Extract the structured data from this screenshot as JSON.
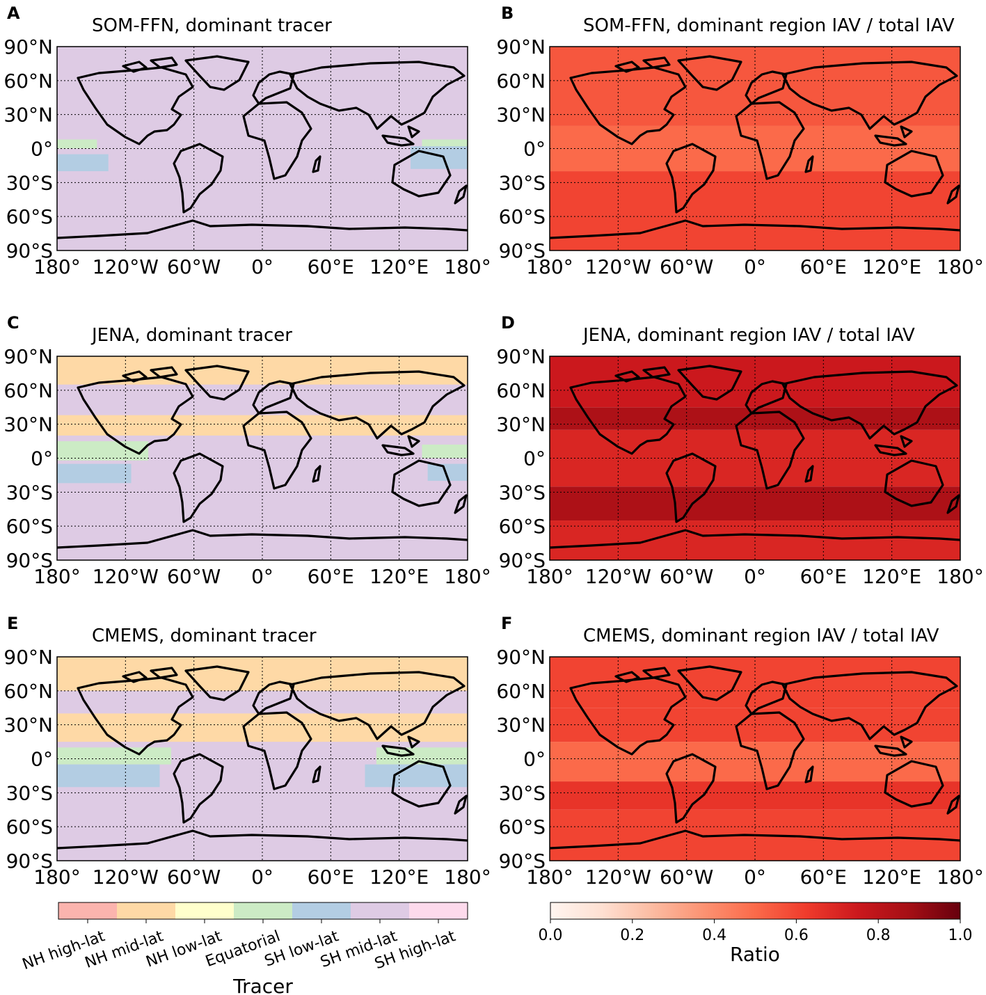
{
  "panels": [
    {
      "letter": "A",
      "title": "SOM-FFN, dominant tracer",
      "kind": "tracer"
    },
    {
      "letter": "B",
      "title": "SOM-FFN, dominant region IAV / total IAV",
      "kind": "ratio"
    },
    {
      "letter": "C",
      "title": "JENA, dominant tracer",
      "kind": "tracer"
    },
    {
      "letter": "D",
      "title": "JENA, dominant region IAV / total IAV",
      "kind": "ratio"
    },
    {
      "letter": "E",
      "title": "CMEMS, dominant tracer",
      "kind": "tracer"
    },
    {
      "letter": "F",
      "title": "CMEMS, dominant region IAV / total IAV",
      "kind": "ratio"
    }
  ],
  "lat_ticks": [
    "90°N",
    "60°N",
    "30°N",
    "0°",
    "30°S",
    "60°S",
    "90°S"
  ],
  "lon_ticks": [
    "180°",
    "120°W",
    "60°W",
    "0°",
    "60°E",
    "120°E",
    "180°"
  ],
  "tracer_colorbar": {
    "label": "Tracer",
    "categories": [
      "NH high-lat",
      "NH mid-lat",
      "NH low-lat",
      "Equatorial",
      "SH low-lat",
      "SH mid-lat",
      "SH high-lat"
    ],
    "colors": [
      "#fbb4ae",
      "#fed9a6",
      "#ffffcc",
      "#ccebc5",
      "#b3cde3",
      "#decbe4",
      "#fddaec"
    ]
  },
  "ratio_colorbar": {
    "label": "Ratio",
    "ticks": [
      "0.0",
      "0.2",
      "0.4",
      "0.6",
      "0.8",
      "1.0"
    ],
    "colormap": "Reds",
    "range": [
      0,
      1
    ]
  },
  "chart_data": [
    {
      "type": "heatmap",
      "panel": "A",
      "model": "SOM-FFN",
      "field": "dominant tracer",
      "xlim": [
        -180,
        180
      ],
      "ylim": [
        -90,
        90
      ],
      "regions": [
        {
          "tracer": "SH mid-lat",
          "extent": "global ocean background"
        },
        {
          "tracer": "Equatorial",
          "lon": [
            -180,
            -145
          ],
          "lat": [
            0,
            8
          ]
        },
        {
          "tracer": "SH low-lat",
          "lon": [
            -180,
            -135
          ],
          "lat": [
            -20,
            -5
          ]
        },
        {
          "tracer": "Equatorial",
          "lon": [
            140,
            180
          ],
          "lat": [
            0,
            8
          ]
        },
        {
          "tracer": "SH low-lat",
          "lon": [
            130,
            180
          ],
          "lat": [
            -18,
            2
          ]
        }
      ]
    },
    {
      "type": "heatmap",
      "panel": "B",
      "model": "SOM-FFN",
      "field": "dominant region IAV / total IAV",
      "xlim": [
        -180,
        180
      ],
      "ylim": [
        -90,
        90
      ],
      "typical_ratio": 0.55,
      "bands": [
        {
          "lat": [
            -90,
            -20
          ],
          "ratio": 0.6
        },
        {
          "lat": [
            -20,
            20
          ],
          "ratio": 0.5
        },
        {
          "lat": [
            20,
            90
          ],
          "ratio": 0.55
        }
      ]
    },
    {
      "type": "heatmap",
      "panel": "C",
      "model": "JENA",
      "field": "dominant tracer",
      "xlim": [
        -180,
        180
      ],
      "ylim": [
        -90,
        90
      ],
      "regions": [
        {
          "tracer": "SH mid-lat",
          "extent": "global ocean background"
        },
        {
          "tracer": "NH mid-lat",
          "lon": [
            -180,
            180
          ],
          "lat": [
            65,
            90
          ]
        },
        {
          "tracer": "NH mid-lat",
          "lon": [
            -180,
            180
          ],
          "lat": [
            20,
            38
          ]
        },
        {
          "tracer": "Equatorial",
          "lon": [
            -180,
            -100
          ],
          "lat": [
            -2,
            15
          ]
        },
        {
          "tracer": "SH low-lat",
          "lon": [
            -180,
            -115
          ],
          "lat": [
            -22,
            -5
          ]
        },
        {
          "tracer": "Equatorial",
          "lon": [
            140,
            180
          ],
          "lat": [
            0,
            12
          ]
        },
        {
          "tracer": "SH low-lat",
          "lon": [
            145,
            180
          ],
          "lat": [
            -20,
            -5
          ]
        }
      ]
    },
    {
      "type": "heatmap",
      "panel": "D",
      "model": "JENA",
      "field": "dominant region IAV / total IAV",
      "xlim": [
        -180,
        180
      ],
      "ylim": [
        -90,
        90
      ],
      "typical_ratio": 0.75,
      "bands": [
        {
          "lat": [
            -90,
            -55
          ],
          "ratio": 0.7
        },
        {
          "lat": [
            -55,
            -25
          ],
          "ratio": 0.85
        },
        {
          "lat": [
            -25,
            25
          ],
          "ratio": 0.7
        },
        {
          "lat": [
            25,
            45
          ],
          "ratio": 0.85
        },
        {
          "lat": [
            45,
            90
          ],
          "ratio": 0.75
        }
      ]
    },
    {
      "type": "heatmap",
      "panel": "E",
      "model": "CMEMS",
      "field": "dominant tracer",
      "xlim": [
        -180,
        180
      ],
      "ylim": [
        -90,
        90
      ],
      "regions": [
        {
          "tracer": "SH mid-lat",
          "extent": "global ocean background"
        },
        {
          "tracer": "NH mid-lat",
          "lon": [
            -180,
            180
          ],
          "lat": [
            60,
            90
          ]
        },
        {
          "tracer": "NH mid-lat",
          "lon": [
            -180,
            180
          ],
          "lat": [
            15,
            40
          ]
        },
        {
          "tracer": "Equatorial",
          "lon": [
            -180,
            -80
          ],
          "lat": [
            -5,
            10
          ]
        },
        {
          "tracer": "SH low-lat",
          "lon": [
            -180,
            -90
          ],
          "lat": [
            -25,
            -5
          ]
        },
        {
          "tracer": "Equatorial",
          "lon": [
            100,
            180
          ],
          "lat": [
            -5,
            10
          ]
        },
        {
          "tracer": "SH low-lat",
          "lon": [
            90,
            180
          ],
          "lat": [
            -25,
            -5
          ]
        }
      ]
    },
    {
      "type": "heatmap",
      "panel": "F",
      "model": "CMEMS",
      "field": "dominant region IAV / total IAV",
      "xlim": [
        -180,
        180
      ],
      "ylim": [
        -90,
        90
      ],
      "typical_ratio": 0.6,
      "bands": [
        {
          "lat": [
            -90,
            -45
          ],
          "ratio": 0.6
        },
        {
          "lat": [
            -45,
            -20
          ],
          "ratio": 0.65
        },
        {
          "lat": [
            -20,
            15
          ],
          "ratio": 0.5
        },
        {
          "lat": [
            15,
            45
          ],
          "ratio": 0.6
        },
        {
          "lat": [
            45,
            90
          ],
          "ratio": 0.6
        }
      ]
    }
  ]
}
